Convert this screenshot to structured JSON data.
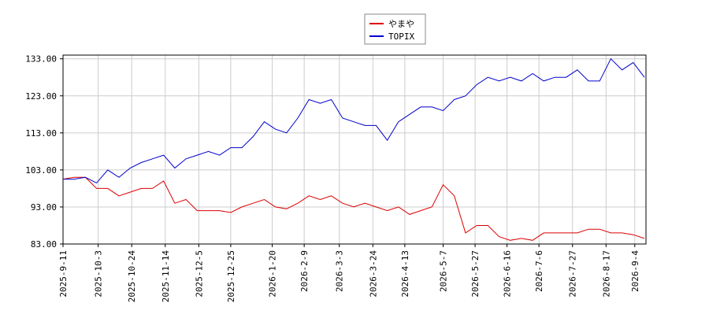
{
  "chart_data": {
    "type": "line",
    "x": [
      "2025-9-11",
      "2025-9-18",
      "2025-9-25",
      "2025-10-2",
      "2025-10-9",
      "2025-10-16",
      "2025-10-23",
      "2025-10-30",
      "2025-11-6",
      "2025-11-13",
      "2025-11-20",
      "2025-11-27",
      "2025-12-4",
      "2025-12-11",
      "2025-12-18",
      "2025-12-25",
      "2026-1-1",
      "2026-1-8",
      "2026-1-15",
      "2026-1-22",
      "2026-1-29",
      "2026-2-5",
      "2026-2-12",
      "2026-2-19",
      "2026-2-26",
      "2026-3-5",
      "2026-3-12",
      "2026-3-19",
      "2026-3-26",
      "2026-4-2",
      "2026-4-9",
      "2026-4-16",
      "2026-4-23",
      "2026-4-30",
      "2026-5-7",
      "2026-5-14",
      "2026-5-21",
      "2026-5-28",
      "2026-6-4",
      "2026-6-11",
      "2026-6-18",
      "2026-6-25",
      "2026-7-2",
      "2026-7-9",
      "2026-7-16",
      "2026-7-23",
      "2026-7-30",
      "2026-8-6",
      "2026-8-13",
      "2026-8-20",
      "2026-8-27",
      "2026-9-3",
      "2026-9-10"
    ],
    "series": [
      {
        "name": "やまや",
        "color": "#dd0000",
        "values": [
          100.5,
          101,
          101,
          98,
          98,
          96,
          97,
          98,
          98,
          100,
          94,
          95,
          92,
          92,
          92,
          91.5,
          93,
          94,
          95,
          93,
          92.5,
          94,
          96,
          95,
          96,
          94,
          93,
          94,
          93,
          92,
          93,
          91,
          92,
          93,
          99,
          96,
          86,
          88,
          88,
          85,
          84,
          84.5,
          84,
          86,
          86,
          86,
          86,
          87,
          87,
          86,
          86,
          85.5,
          84.5
        ]
      },
      {
        "name": "TOPIX",
        "color": "#0000cc",
        "values": [
          100.5,
          100.5,
          101,
          99.5,
          103,
          101,
          103.5,
          105,
          106,
          107,
          103.5,
          106,
          107,
          108,
          107,
          109,
          109,
          112,
          116,
          114,
          113,
          117,
          122,
          121,
          122,
          117,
          116,
          115,
          115,
          111,
          116,
          118,
          120,
          120,
          119,
          122,
          123,
          126,
          128,
          127,
          128,
          127,
          129,
          127,
          128,
          128,
          130,
          127,
          127,
          133,
          130,
          132,
          128
        ]
      }
    ],
    "xlim": [
      "2025-9-11",
      "2026-9-11"
    ],
    "xticks": [
      "2025-9-11",
      "2025-10-3",
      "2025-10-24",
      "2025-11-14",
      "2025-12-5",
      "2025-12-25",
      "2026-1-20",
      "2026-2-9",
      "2026-3-3",
      "2026-3-24",
      "2026-4-13",
      "2026-5-7",
      "2026-5-27",
      "2026-6-16",
      "2026-7-6",
      "2026-7-27",
      "2026-8-17",
      "2026-9-4"
    ],
    "ylim": [
      83,
      134
    ],
    "yticks": [
      {
        "value": 83,
        "label": "83.00"
      },
      {
        "value": 93,
        "label": "93.00"
      },
      {
        "value": 103,
        "label": "103.00"
      },
      {
        "value": 113,
        "label": "113.00"
      },
      {
        "value": 123,
        "label": "123.00"
      },
      {
        "value": 133,
        "label": "133.00"
      }
    ],
    "grid": true
  }
}
